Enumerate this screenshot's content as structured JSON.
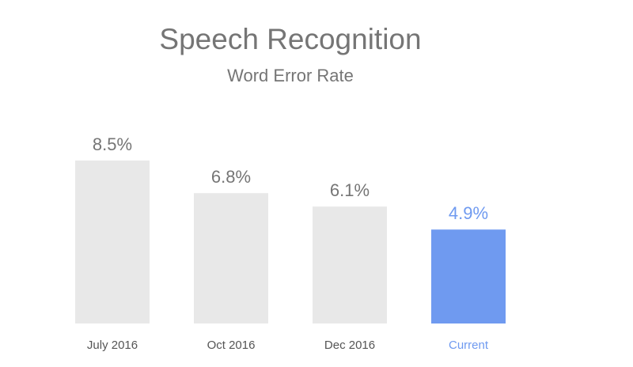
{
  "chart_data": {
    "type": "bar",
    "title": "Speech Recognition",
    "subtitle": "Word Error Rate",
    "categories": [
      "July 2016",
      "Oct 2016",
      "Dec 2016",
      "Current"
    ],
    "values": [
      8.5,
      6.8,
      6.1,
      4.9
    ],
    "value_labels": [
      "8.5%",
      "6.8%",
      "6.1%",
      "4.9%"
    ],
    "colors": [
      "#e8e8e8",
      "#e8e8e8",
      "#e8e8e8",
      "#6f9af0"
    ],
    "label_colors": [
      "#757575",
      "#757575",
      "#757575",
      "#6f9af0"
    ]
  }
}
